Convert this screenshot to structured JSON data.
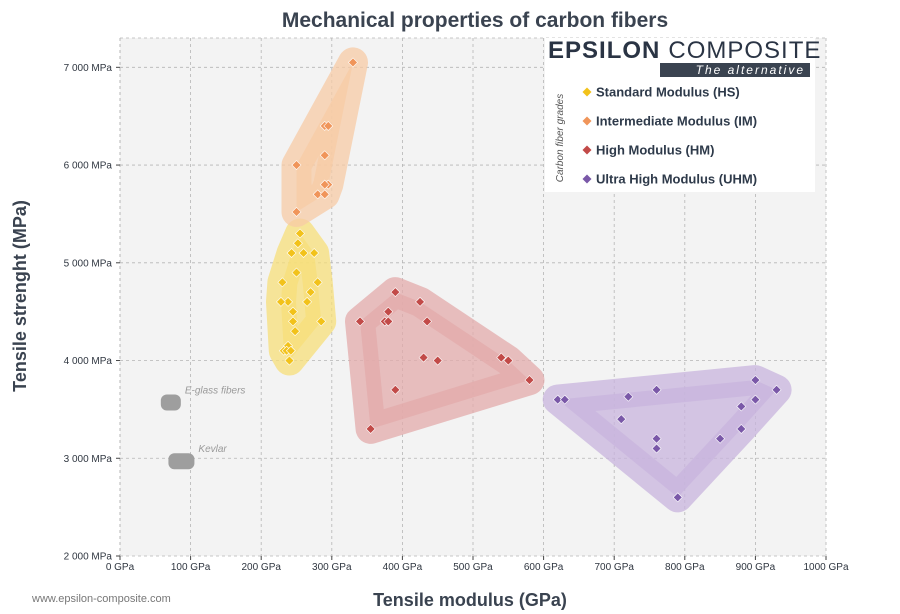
{
  "chart_data": {
    "type": "scatter",
    "title": "Mechanical properties of carbon fibers",
    "xlabel": "Tensile modulus (GPa)",
    "ylabel": "Tensile strenght (MPa)",
    "xlim": [
      0,
      1000
    ],
    "ylim": [
      2000,
      7300
    ],
    "x_ticks": [
      0,
      100,
      200,
      300,
      400,
      500,
      600,
      700,
      800,
      900,
      1000
    ],
    "x_tick_labels": [
      "0 GPa",
      "100 GPa",
      "200 GPa",
      "300 GPa",
      "400 GPa",
      "500 GPa",
      "600 GPa",
      "700 GPa",
      "800 GPa",
      "900 GPa",
      "1000 GPa"
    ],
    "y_ticks": [
      2000,
      3000,
      4000,
      5000,
      6000,
      7000
    ],
    "y_tick_labels": [
      "2 000 MPa",
      "3 000 MPa",
      "4 000 MPa",
      "5 000 MPa",
      "6 000 MPa",
      "7 000 MPa"
    ],
    "grid": true,
    "legend_position": "top-right",
    "legend_group_label": "Carbon fiber grades",
    "series": [
      {
        "name": "Standard Modulus (HS)",
        "color": "#f2c21a",
        "region_color": "#f7df7a",
        "points": [
          [
            230,
            4800
          ],
          [
            245,
            4500
          ],
          [
            250,
            4900
          ],
          [
            255,
            5300
          ],
          [
            260,
            5100
          ],
          [
            265,
            4600
          ],
          [
            270,
            4700
          ],
          [
            275,
            5100
          ],
          [
            280,
            4800
          ],
          [
            285,
            4400
          ],
          [
            238,
            4600
          ],
          [
            248,
            4300
          ],
          [
            252,
            5200
          ],
          [
            243,
            5100
          ],
          [
            245,
            4400
          ],
          [
            232,
            4100
          ],
          [
            238,
            4150
          ],
          [
            240,
            4000
          ],
          [
            236,
            4100
          ],
          [
            242,
            4100
          ],
          [
            228,
            4600
          ]
        ]
      },
      {
        "name": "Intermediate Modulus (IM)",
        "color": "#f0955a",
        "region_color": "#f7cba6",
        "points": [
          [
            330,
            7050
          ],
          [
            290,
            6400
          ],
          [
            295,
            6400
          ],
          [
            290,
            6100
          ],
          [
            250,
            6000
          ],
          [
            295,
            5800
          ],
          [
            290,
            5800
          ],
          [
            280,
            5700
          ],
          [
            290,
            5700
          ],
          [
            250,
            5520
          ]
        ]
      },
      {
        "name": "High Modulus (HM)",
        "color": "#c24a48",
        "region_color": "#e3abab",
        "points": [
          [
            340,
            4400
          ],
          [
            375,
            4400
          ],
          [
            380,
            4500
          ],
          [
            380,
            4400
          ],
          [
            390,
            4700
          ],
          [
            425,
            4600
          ],
          [
            435,
            4400
          ],
          [
            430,
            4030
          ],
          [
            450,
            4000
          ],
          [
            540,
            4030
          ],
          [
            550,
            4000
          ],
          [
            580,
            3800
          ],
          [
            390,
            3700
          ],
          [
            355,
            3300
          ]
        ]
      },
      {
        "name": "Ultra High Modulus (UHM)",
        "color": "#7a58a8",
        "region_color": "#c8b4dd",
        "points": [
          [
            620,
            3600
          ],
          [
            630,
            3600
          ],
          [
            710,
            3400
          ],
          [
            720,
            3630
          ],
          [
            760,
            3700
          ],
          [
            760,
            3200
          ],
          [
            760,
            3100
          ],
          [
            790,
            2600
          ],
          [
            850,
            3200
          ],
          [
            880,
            3530
          ],
          [
            880,
            3300
          ],
          [
            900,
            3800
          ],
          [
            900,
            3600
          ],
          [
            930,
            3700
          ]
        ]
      }
    ],
    "reference_materials": [
      {
        "label": "E-glass fibers",
        "x": 72,
        "y": 3570
      },
      {
        "label": "Kevlar",
        "x": 87,
        "y": 2970
      }
    ]
  },
  "brand": {
    "name_bold": "EPSILON",
    "name_light": "COMPOSITE",
    "tagline": "The alternative"
  },
  "website": "www.epsilon-composite.com",
  "colors": {
    "grid": "#b5b5b5",
    "plot_bg": "#f3f3f3",
    "reference_gray": "#9e9e9e",
    "brand_bar": "#3a4350"
  }
}
